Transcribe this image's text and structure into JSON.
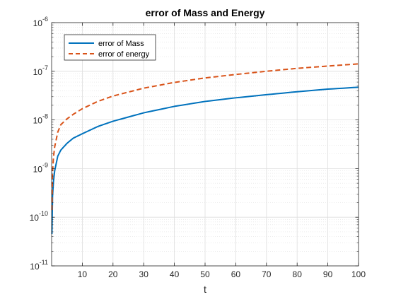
{
  "chart_data": {
    "type": "line",
    "title": "error of Mass and Energy",
    "xlabel": "t",
    "ylabel": "",
    "xlim": [
      0,
      100
    ],
    "ylim": [
      1e-11,
      1e-06
    ],
    "yscale": "log",
    "grid": true,
    "minor_grid": true,
    "legend_position": "top-left",
    "x_ticks": [
      10,
      20,
      30,
      40,
      50,
      60,
      70,
      80,
      90,
      100
    ],
    "x_tick_labels": [
      "10",
      "20",
      "30",
      "40",
      "50",
      "60",
      "70",
      "80",
      "90",
      "100"
    ],
    "y_ticks": [
      {
        "value": 1e-11,
        "base": "10",
        "exp": "-11"
      },
      {
        "value": 1e-10,
        "base": "10",
        "exp": "-10"
      },
      {
        "value": 1e-09,
        "base": "10",
        "exp": "-9"
      },
      {
        "value": 1e-08,
        "base": "10",
        "exp": "-8"
      },
      {
        "value": 1e-07,
        "base": "10",
        "exp": "-7"
      },
      {
        "value": 1e-06,
        "base": "10",
        "exp": "-6"
      }
    ],
    "series": [
      {
        "name": "error of Mass",
        "color": "#0072BD",
        "line_style": "solid",
        "x": [
          0.1,
          0.3,
          0.6,
          1,
          2,
          3,
          5,
          7,
          10,
          15,
          20,
          30,
          40,
          50,
          60,
          70,
          80,
          90,
          100
        ],
        "y": [
          4.5e-11,
          2.7e-10,
          5.4e-10,
          9e-10,
          1.8e-09,
          2.4e-09,
          3.3e-09,
          4.2e-09,
          5.2e-09,
          7.3e-09,
          9.4e-09,
          1.4e-08,
          1.9e-08,
          2.4e-08,
          2.85e-08,
          3.3e-08,
          3.8e-08,
          4.3e-08,
          4.7e-08
        ]
      },
      {
        "name": "error of energy",
        "color": "#D95319",
        "line_style": "dashed",
        "x": [
          0.1,
          0.3,
          0.6,
          1,
          2,
          3,
          5,
          7,
          10,
          15,
          20,
          30,
          40,
          50,
          60,
          70,
          80,
          90,
          100
        ],
        "y": [
          1.4e-10,
          8.5e-10,
          1.7e-09,
          2.8e-09,
          5.6e-09,
          8e-09,
          1.05e-08,
          1.3e-08,
          1.7e-08,
          2.4e-08,
          3.1e-08,
          4.5e-08,
          5.9e-08,
          7.3e-08,
          8.6e-08,
          1e-07,
          1.15e-07,
          1.28e-07,
          1.42e-07
        ]
      }
    ]
  }
}
